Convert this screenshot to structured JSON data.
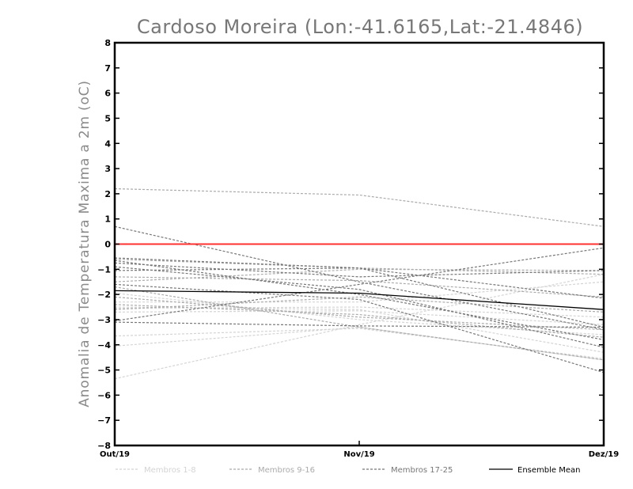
{
  "chart_data": {
    "type": "line",
    "title": "Cardoso Moreira (Lon:-41.6165,Lat:-21.4846)",
    "xlabel": "",
    "ylabel": "Anomalia de Temperatura Maxima a 2m (oC)",
    "categories": [
      "Out/19",
      "Nov/19",
      "Dez/19"
    ],
    "ylim": [
      -8,
      8
    ],
    "yticks": [
      -8,
      -7,
      -6,
      -5,
      -4,
      -3,
      -2,
      -1,
      0,
      1,
      2,
      3,
      4,
      5,
      6,
      7,
      8
    ],
    "reference_line": {
      "y": 0,
      "color": "#ff3030"
    },
    "grid": false,
    "legend_position": "bottom",
    "legend": [
      {
        "label": "Membros 1-8",
        "color": "#d4d4d4",
        "dash": true
      },
      {
        "label": "Membros 9-16",
        "color": "#ababab",
        "dash": true
      },
      {
        "label": "Membros 17-25",
        "color": "#777777",
        "dash": true
      },
      {
        "label": "Ensemble Mean",
        "color": "#000000",
        "dash": false
      }
    ],
    "series_groups": [
      {
        "name": "Membros 1-8",
        "color": "#d4d4d4",
        "series": [
          [
            -5.35,
            -3.2,
            -1.2
          ],
          [
            -3.65,
            -3.35,
            -4.55
          ],
          [
            -4.05,
            -3.3,
            -4.6
          ],
          [
            -2.5,
            -2.6,
            -4.3
          ],
          [
            -2.3,
            -2.3,
            -1.5
          ],
          [
            -2.7,
            -2.65,
            -3.2
          ],
          [
            -1.95,
            -3.0,
            -3.6
          ],
          [
            -2.55,
            -2.5,
            -2.9
          ]
        ]
      },
      {
        "name": "Membros 9-16",
        "color": "#ababab",
        "series": [
          [
            2.2,
            1.95,
            0.7
          ],
          [
            -2.4,
            -2.8,
            -3.7
          ],
          [
            -1.5,
            -1.0,
            -1.05
          ],
          [
            -1.7,
            -3.3,
            -4.6
          ],
          [
            -2.1,
            -2.9,
            -3.4
          ],
          [
            -1.3,
            -1.45,
            -2.1
          ],
          [
            -2.6,
            -2.1,
            -2.7
          ],
          [
            -0.6,
            -0.95,
            -1.2
          ]
        ]
      },
      {
        "name": "Membros 17-25",
        "color": "#777777",
        "series": [
          [
            0.7,
            -1.5,
            -3.4
          ],
          [
            -0.55,
            -0.95,
            -2.15
          ],
          [
            -0.65,
            -2.0,
            -3.8
          ],
          [
            -0.75,
            -1.3,
            -1.05
          ],
          [
            -1.05,
            -0.95,
            -3.3
          ],
          [
            -3.05,
            -1.6,
            -0.15
          ],
          [
            -3.1,
            -3.25,
            -3.3
          ],
          [
            -0.9,
            -1.8,
            -4.1
          ],
          [
            -1.6,
            -2.2,
            -5.1
          ]
        ]
      }
    ],
    "ensemble_mean": {
      "name": "Ensemble Mean",
      "color": "#000000",
      "values": [
        -1.85,
        -1.95,
        -2.6
      ]
    }
  }
}
